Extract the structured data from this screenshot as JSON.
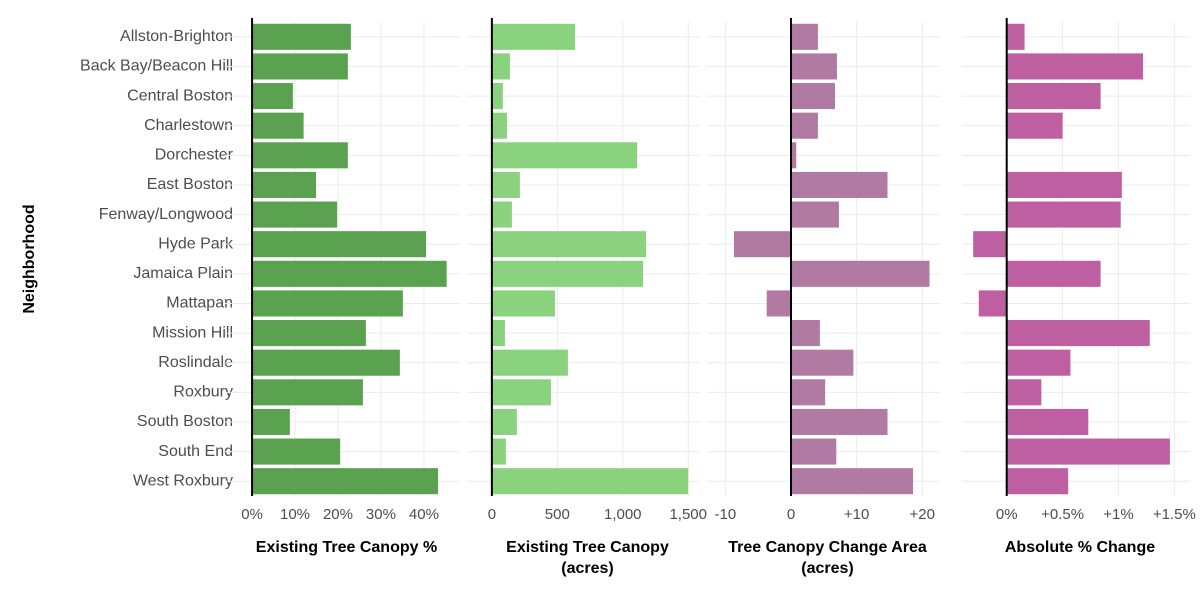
{
  "chart_data": [
    {
      "type": "bar",
      "y_label": "Neighborhood",
      "x_label": [
        "Existing Tree Canopy %"
      ],
      "categories": [
        "Allston-Brighton",
        "Back Bay/Beacon Hill",
        "Central Boston",
        "Charlestown",
        "Dorchester",
        "East Boston",
        "Fenway/Longwood",
        "Hyde Park",
        "Jamaica Plain",
        "Mattapan",
        "Mission Hill",
        "Roslindale",
        "Roxbury",
        "South Boston",
        "South End",
        "West Roxbury"
      ],
      "values": [
        23,
        22.3,
        9.5,
        12,
        22.3,
        14.9,
        19.8,
        40.5,
        45.3,
        35.1,
        26.5,
        34.4,
        25.8,
        8.8,
        20.5,
        43.3
      ],
      "color": "#5aa24f",
      "grid": true,
      "xlim": [
        -6.3,
        48.4
      ],
      "xticks": [
        {
          "value": 0,
          "label": "0%"
        },
        {
          "value": 10,
          "label": "10%"
        },
        {
          "value": 20,
          "label": "20%"
        },
        {
          "value": 30,
          "label": "30%"
        },
        {
          "value": 40,
          "label": "40%"
        }
      ]
    },
    {
      "type": "bar",
      "x_label": [
        "Existing Tree Canopy",
        "(acres)"
      ],
      "values": [
        635,
        138,
        84,
        115,
        1110,
        214,
        153,
        1178,
        1155,
        482,
        100,
        581,
        451,
        191,
        107,
        1500
      ],
      "color": "#8ad27d",
      "grid": true,
      "xlim": [
        -190,
        1590
      ],
      "xticks": [
        0,
        500,
        {
          "value": 1000,
          "label": "1,000"
        },
        {
          "value": 1500,
          "label": "1,500"
        }
      ]
    },
    {
      "type": "bar",
      "x_label": [
        "Tree Canopy Change Area",
        "(acres)"
      ],
      "values": [
        4.1,
        7.0,
        6.7,
        4.1,
        0.8,
        14.7,
        7.3,
        -8.7,
        21.1,
        -3.7,
        4.4,
        9.5,
        5.2,
        14.7,
        6.9,
        18.6
      ],
      "color": "#b07aa2",
      "grid": true,
      "xlim": [
        -12.8,
        22.7
      ],
      "xticks": [
        -10,
        0,
        {
          "value": 10,
          "label": "+10"
        },
        {
          "value": 20,
          "label": "+20"
        }
      ]
    },
    {
      "type": "bar",
      "x_label": [
        "Absolute % Change"
      ],
      "values": [
        0.16,
        1.22,
        0.84,
        0.5,
        0,
        1.03,
        1.02,
        -0.3,
        0.84,
        -0.25,
        1.28,
        0.57,
        0.31,
        0.73,
        1.46,
        0.55
      ],
      "color": "#bd5fa0",
      "grid": true,
      "xlim": [
        -0.4,
        1.64
      ],
      "xticks": [
        {
          "value": 0,
          "label": "0%"
        },
        {
          "value": 0.5,
          "label": "+0.5%"
        },
        {
          "value": 1,
          "label": "+1%"
        },
        {
          "value": 1.5,
          "label": "+1.5%"
        }
      ]
    }
  ]
}
